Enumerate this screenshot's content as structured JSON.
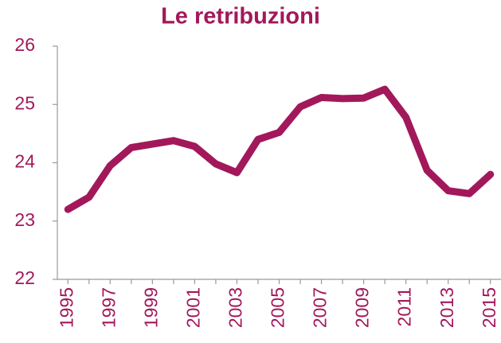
{
  "chart_data": {
    "type": "line",
    "title": "Le retribuzioni",
    "categories": [
      "1995",
      null,
      "1997",
      null,
      "1999",
      null,
      "2001",
      null,
      "2003",
      null,
      "2005",
      null,
      "2007",
      null,
      "2009",
      null,
      "2011",
      null,
      "2013",
      null,
      "2015"
    ],
    "series": [
      {
        "color": "#a2185b",
        "values": [
          23.2,
          23.41,
          23.95,
          24.26,
          24.32,
          24.38,
          24.28,
          23.98,
          23.83,
          24.4,
          24.52,
          24.96,
          25.12,
          25.1,
          25.11,
          25.26,
          24.78,
          23.87,
          23.52,
          23.47,
          23.8
        ]
      }
    ],
    "ylim": [
      22,
      26
    ],
    "yticks": [
      22,
      23,
      24,
      25,
      26
    ],
    "grid": false
  }
}
